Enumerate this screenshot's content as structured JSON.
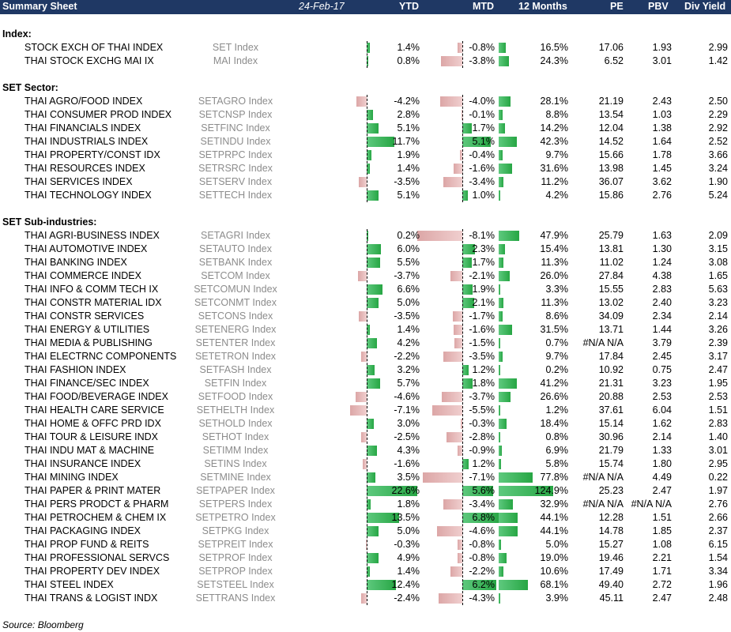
{
  "header": {
    "title": "Summary Sheet",
    "date": "24-Feb-17",
    "columns": [
      "YTD",
      "MTD",
      "12 Months",
      "PE",
      "PBV",
      "Div Yield"
    ]
  },
  "sections": [
    {
      "title": "Index:",
      "rows": [
        {
          "name": "STOCK EXCH OF THAI INDEX",
          "ticker": "SET Index",
          "ytd": "1.4%",
          "mtd": "-0.8%",
          "m12": "16.5%",
          "pe": "17.06",
          "pbv": "1.93",
          "dy": "2.99"
        },
        {
          "name": "THAI STOCK EXCHG MAI IX",
          "ticker": "MAI Index",
          "ytd": "0.8%",
          "mtd": "-3.8%",
          "m12": "24.3%",
          "pe": "6.52",
          "pbv": "3.01",
          "dy": "1.42"
        }
      ]
    },
    {
      "title": "SET Sector:",
      "rows": [
        {
          "name": "THAI AGRO/FOOD INDEX",
          "ticker": "SETAGRO Index",
          "ytd": "-4.2%",
          "mtd": "-4.0%",
          "m12": "28.1%",
          "pe": "21.19",
          "pbv": "2.43",
          "dy": "2.50"
        },
        {
          "name": "THAI CONSUMER PROD INDEX",
          "ticker": "SETCNSP Index",
          "ytd": "2.8%",
          "mtd": "-0.1%",
          "m12": "8.8%",
          "pe": "13.54",
          "pbv": "1.03",
          "dy": "2.29"
        },
        {
          "name": "THAI FINANCIALS INDEX",
          "ticker": "SETFINC Index",
          "ytd": "5.1%",
          "mtd": "1.7%",
          "m12": "14.2%",
          "pe": "12.04",
          "pbv": "1.38",
          "dy": "2.92"
        },
        {
          "name": "THAI INDUSTRIALS INDEX",
          "ticker": "SETINDU Index",
          "ytd": "11.7%",
          "mtd": "5.1%",
          "m12": "42.3%",
          "pe": "14.52",
          "pbv": "1.64",
          "dy": "2.52"
        },
        {
          "name": "THAI PROPERTY/CONST IDX",
          "ticker": "SETPRPC Index",
          "ytd": "1.9%",
          "mtd": "-0.4%",
          "m12": "9.7%",
          "pe": "15.66",
          "pbv": "1.78",
          "dy": "3.66"
        },
        {
          "name": "THAI RESOURCES INDEX",
          "ticker": "SETRSRC Index",
          "ytd": "1.4%",
          "mtd": "-1.6%",
          "m12": "31.6%",
          "pe": "13.98",
          "pbv": "1.45",
          "dy": "3.24"
        },
        {
          "name": "THAI SERVICES INDEX",
          "ticker": "SETSERV Index",
          "ytd": "-3.5%",
          "mtd": "-3.4%",
          "m12": "11.2%",
          "pe": "36.07",
          "pbv": "3.62",
          "dy": "1.90"
        },
        {
          "name": "THAI TECHNOLOGY INDEX",
          "ticker": "SETTECH Index",
          "ytd": "5.1%",
          "mtd": "1.0%",
          "m12": "4.2%",
          "pe": "15.86",
          "pbv": "2.76",
          "dy": "5.24"
        }
      ]
    },
    {
      "title": "SET Sub-industries:",
      "rows": [
        {
          "name": "THAI AGRI-BUSINESS INDEX",
          "ticker": "SETAGRI Index",
          "ytd": "0.2%",
          "mtd": "-8.1%",
          "m12": "47.9%",
          "pe": "25.79",
          "pbv": "1.63",
          "dy": "2.09"
        },
        {
          "name": "THAI AUTOMOTIVE INDEX",
          "ticker": "SETAUTO Index",
          "ytd": "6.0%",
          "mtd": "2.3%",
          "m12": "15.4%",
          "pe": "13.81",
          "pbv": "1.30",
          "dy": "3.15"
        },
        {
          "name": "THAI BANKING INDEX",
          "ticker": "SETBANK Index",
          "ytd": "5.5%",
          "mtd": "1.7%",
          "m12": "11.3%",
          "pe": "11.02",
          "pbv": "1.24",
          "dy": "3.08"
        },
        {
          "name": "THAI COMMERCE INDEX",
          "ticker": "SETCOM Index",
          "ytd": "-3.7%",
          "mtd": "-2.1%",
          "m12": "26.0%",
          "pe": "27.84",
          "pbv": "4.38",
          "dy": "1.65"
        },
        {
          "name": "THAI INFO & COMM TECH IX",
          "ticker": "SETCOMUN Index",
          "ytd": "6.6%",
          "mtd": "1.9%",
          "m12": "3.3%",
          "pe": "15.55",
          "pbv": "2.83",
          "dy": "5.63"
        },
        {
          "name": "THAI CONSTR MATERIAL IDX",
          "ticker": "SETCONMT Index",
          "ytd": "5.0%",
          "mtd": "2.1%",
          "m12": "11.3%",
          "pe": "13.02",
          "pbv": "2.40",
          "dy": "3.23"
        },
        {
          "name": "THAI CONSTR SERVICES",
          "ticker": "SETCONS Index",
          "ytd": "-3.5%",
          "mtd": "-1.7%",
          "m12": "8.6%",
          "pe": "34.09",
          "pbv": "2.34",
          "dy": "2.14"
        },
        {
          "name": "THAI ENERGY & UTILITIES",
          "ticker": "SETENERG Index",
          "ytd": "1.4%",
          "mtd": "-1.6%",
          "m12": "31.5%",
          "pe": "13.71",
          "pbv": "1.44",
          "dy": "3.26"
        },
        {
          "name": "THAI MEDIA & PUBLISHING",
          "ticker": "SETENTER Index",
          "ytd": "4.2%",
          "mtd": "-1.5%",
          "m12": "0.7%",
          "pe": "#N/A N/A",
          "pbv": "3.79",
          "dy": "2.39"
        },
        {
          "name": "THAI ELECTRNC COMPONENTS",
          "ticker": "SETETRON Index",
          "ytd": "-2.2%",
          "mtd": "-3.5%",
          "m12": "9.7%",
          "pe": "17.84",
          "pbv": "2.45",
          "dy": "3.17"
        },
        {
          "name": "THAI FASHION INDEX",
          "ticker": "SETFASH Index",
          "ytd": "3.2%",
          "mtd": "1.2%",
          "m12": "0.2%",
          "pe": "10.92",
          "pbv": "0.75",
          "dy": "2.47"
        },
        {
          "name": "THAI FINANCE/SEC INDEX",
          "ticker": "SETFIN Index",
          "ytd": "5.7%",
          "mtd": "1.8%",
          "m12": "41.2%",
          "pe": "21.31",
          "pbv": "3.23",
          "dy": "1.95"
        },
        {
          "name": "THAI FOOD/BEVERAGE INDEX",
          "ticker": "SETFOOD Index",
          "ytd": "-4.6%",
          "mtd": "-3.7%",
          "m12": "26.6%",
          "pe": "20.88",
          "pbv": "2.53",
          "dy": "2.53"
        },
        {
          "name": "THAI HEALTH CARE SERVICE",
          "ticker": "SETHELTH Index",
          "ytd": "-7.1%",
          "mtd": "-5.5%",
          "m12": "1.2%",
          "pe": "37.61",
          "pbv": "6.04",
          "dy": "1.51"
        },
        {
          "name": "THAI HOME & OFFC PRD IDX",
          "ticker": "SETHOLD Index",
          "ytd": "3.0%",
          "mtd": "-0.3%",
          "m12": "18.4%",
          "pe": "15.14",
          "pbv": "1.62",
          "dy": "2.83"
        },
        {
          "name": "THAI TOUR & LEISURE INDX",
          "ticker": "SETHOT Index",
          "ytd": "-2.5%",
          "mtd": "-2.8%",
          "m12": "0.8%",
          "pe": "30.96",
          "pbv": "2.14",
          "dy": "1.40"
        },
        {
          "name": "THAI INDU MAT & MACHINE",
          "ticker": "SETIMM Index",
          "ytd": "4.3%",
          "mtd": "-0.9%",
          "m12": "6.9%",
          "pe": "21.79",
          "pbv": "1.33",
          "dy": "3.01"
        },
        {
          "name": "THAI INSURANCE INDEX",
          "ticker": "SETINS Index",
          "ytd": "-1.6%",
          "mtd": "1.2%",
          "m12": "5.8%",
          "pe": "15.74",
          "pbv": "1.80",
          "dy": "2.95"
        },
        {
          "name": "THAI MINING INDEX",
          "ticker": "SETMINE Index",
          "ytd": "3.5%",
          "mtd": "-7.1%",
          "m12": "77.8%",
          "pe": "#N/A N/A",
          "pbv": "4.49",
          "dy": "0.22"
        },
        {
          "name": "THAI PAPER & PRINT MATER",
          "ticker": "SETPAPER Index",
          "ytd": "22.6%",
          "mtd": "5.6%",
          "m12": "124.9%",
          "pe": "25.23",
          "pbv": "2.47",
          "dy": "1.97"
        },
        {
          "name": "THAI PERS PRODCT & PHARM",
          "ticker": "SETPERS Index",
          "ytd": "1.8%",
          "mtd": "-3.4%",
          "m12": "32.9%",
          "pe": "#N/A N/A",
          "pbv": "#N/A N/A",
          "dy": "2.76"
        },
        {
          "name": "THAI PETROCHEM & CHEM IX",
          "ticker": "SETPETRO Index",
          "ytd": "13.5%",
          "mtd": "6.8%",
          "m12": "44.1%",
          "pe": "12.28",
          "pbv": "1.51",
          "dy": "2.66"
        },
        {
          "name": "THAI PACKAGING INDEX",
          "ticker": "SETPKG Index",
          "ytd": "5.0%",
          "mtd": "-4.6%",
          "m12": "44.1%",
          "pe": "14.78",
          "pbv": "1.85",
          "dy": "2.37"
        },
        {
          "name": "THAI PROP FUND & REITS",
          "ticker": "SETPREIT Index",
          "ytd": "-0.3%",
          "mtd": "-0.8%",
          "m12": "5.0%",
          "pe": "15.27",
          "pbv": "1.08",
          "dy": "6.15"
        },
        {
          "name": "THAI PROFESSIONAL SERVCS",
          "ticker": "SETPROF Index",
          "ytd": "4.9%",
          "mtd": "-0.8%",
          "m12": "19.0%",
          "pe": "19.46",
          "pbv": "2.21",
          "dy": "1.54"
        },
        {
          "name": "THAI PROPERTY DEV INDEX",
          "ticker": "SETPROP Index",
          "ytd": "1.4%",
          "mtd": "-2.2%",
          "m12": "10.6%",
          "pe": "17.49",
          "pbv": "1.71",
          "dy": "3.34"
        },
        {
          "name": "THAI STEEL INDEX",
          "ticker": "SETSTEEL Index",
          "ytd": "12.4%",
          "mtd": "6.2%",
          "m12": "68.1%",
          "pe": "49.40",
          "pbv": "2.72",
          "dy": "1.96"
        },
        {
          "name": "THAI TRANS & LOGIST INDX",
          "ticker": "SETTRANS Index",
          "ytd": "-2.4%",
          "mtd": "-4.3%",
          "m12": "3.9%",
          "pe": "45.11",
          "pbv": "2.47",
          "dy": "2.48"
        }
      ]
    }
  ],
  "source": "Source: Bloomberg",
  "colors": {
    "header_bg": "#1f3864",
    "positive_bar": "#27a644",
    "negative_bar": "#dca6a6",
    "ticker_text": "#8c8c8c"
  }
}
